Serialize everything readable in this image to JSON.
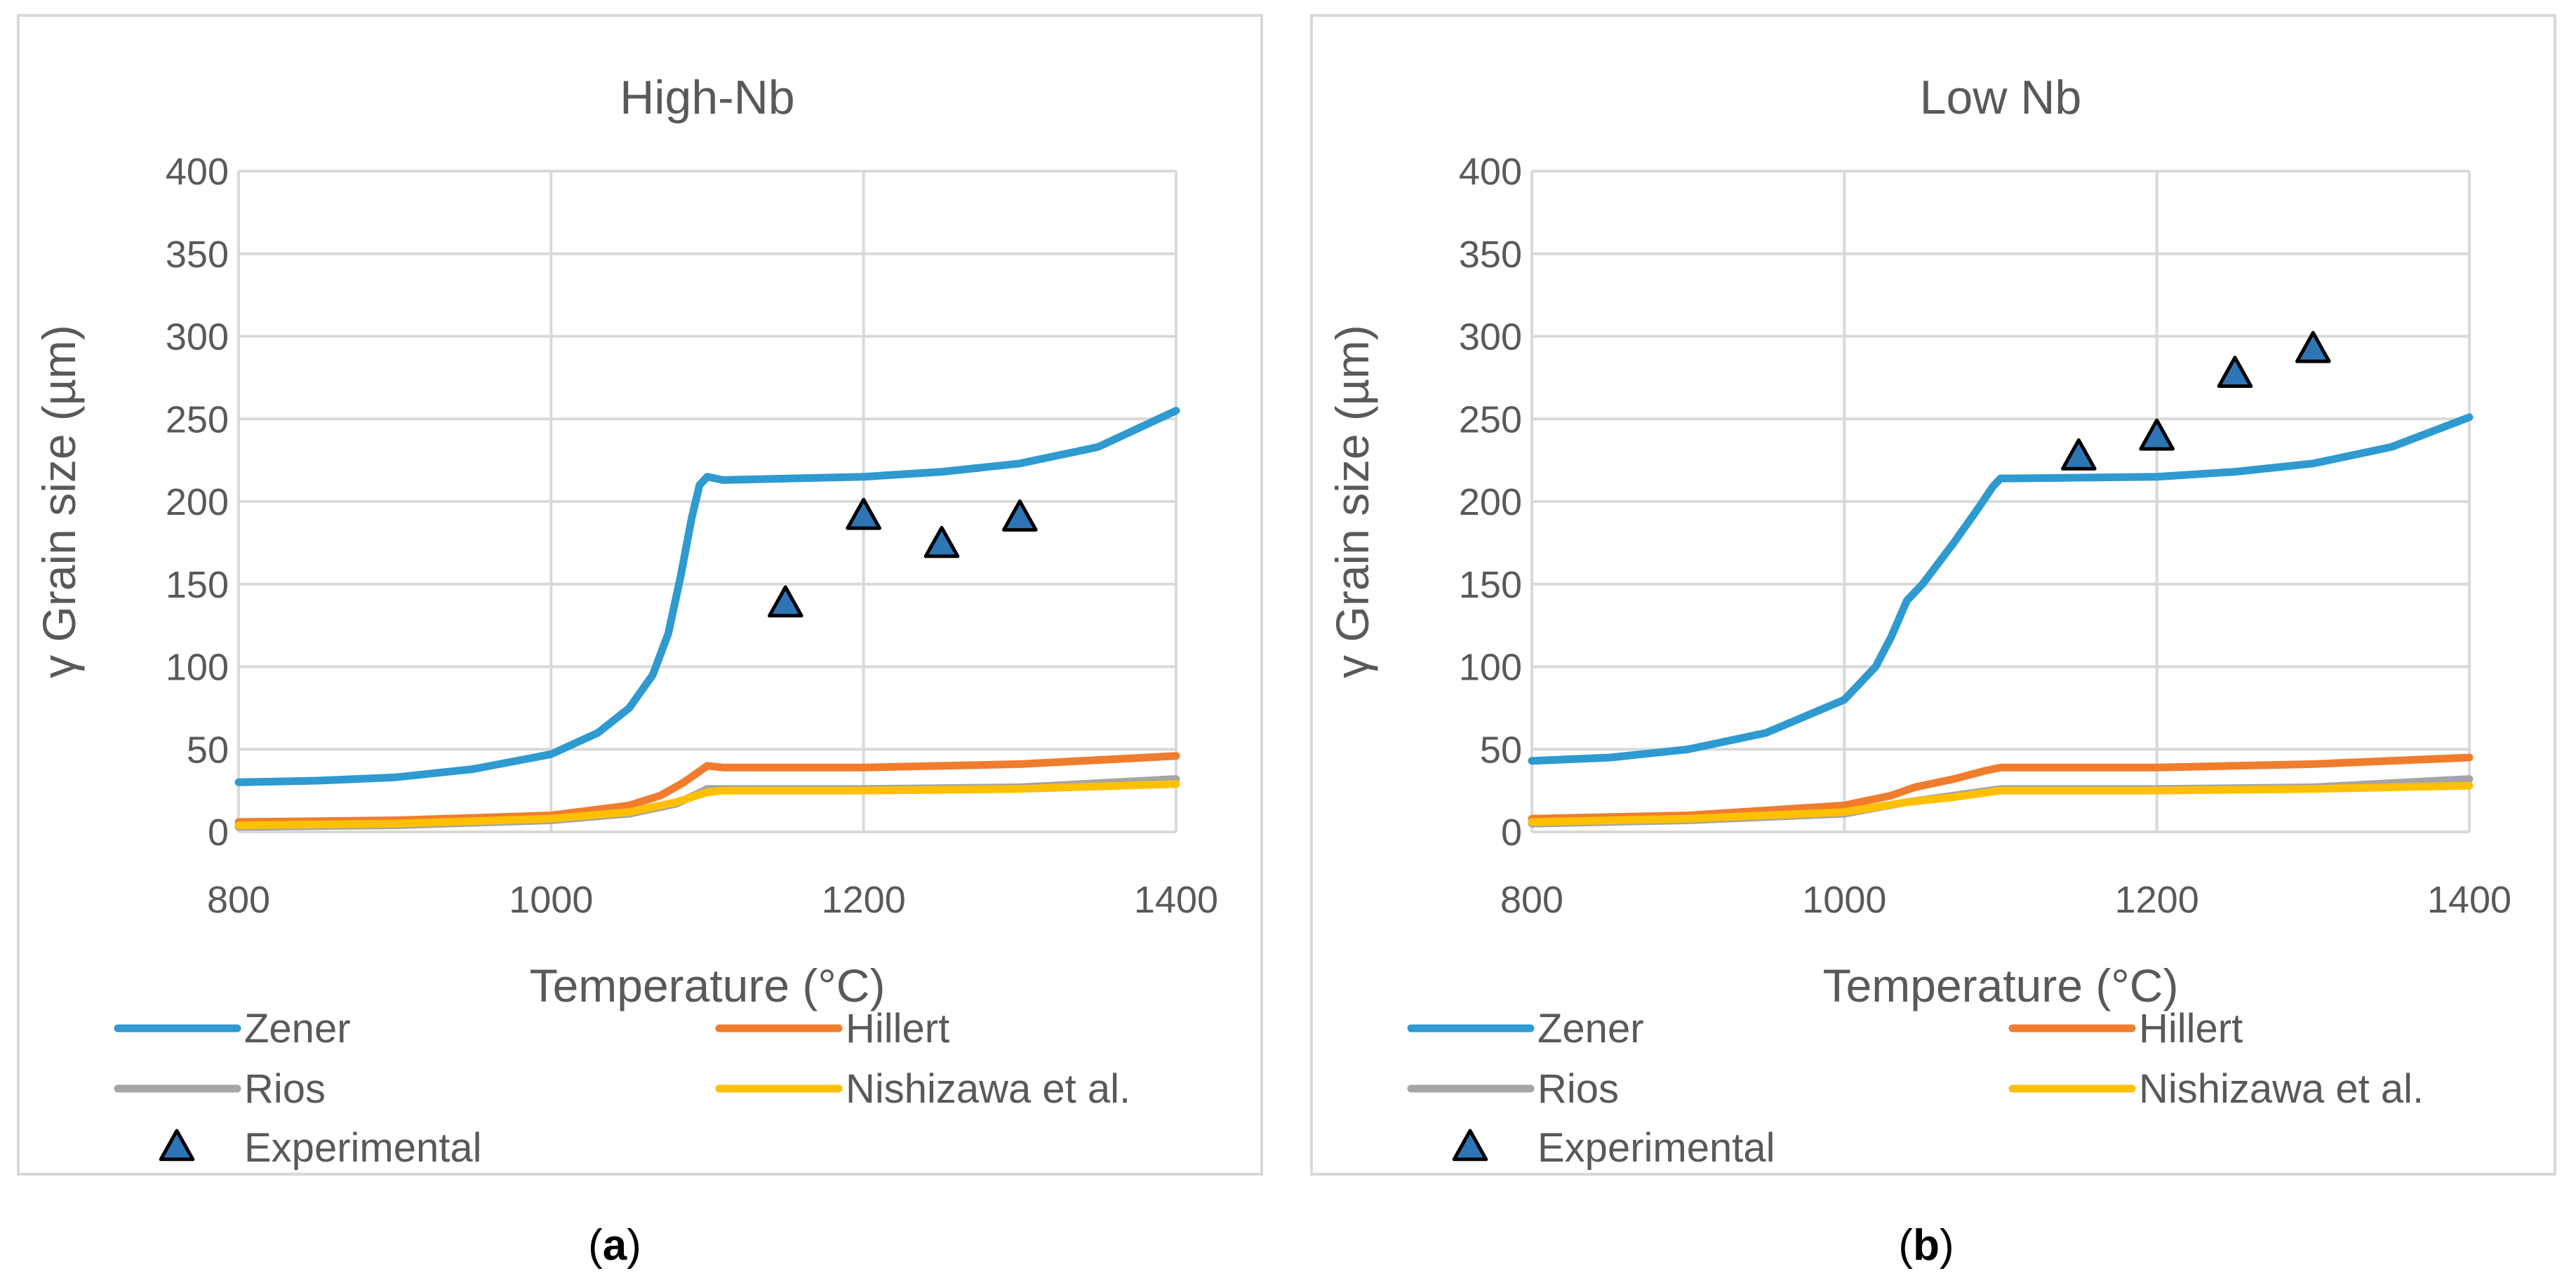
{
  "chart_data": [
    {
      "type": "line",
      "panel": "a",
      "title": "High-Nb",
      "xlabel": "Temperature (°C)",
      "ylabel": "γ Grain size (µm)",
      "xlim": [
        800,
        1400
      ],
      "ylim": [
        0,
        400
      ],
      "xticks": [
        800,
        1000,
        1200,
        1400
      ],
      "yticks": [
        0,
        50,
        100,
        150,
        200,
        250,
        300,
        350,
        400
      ],
      "grid": true,
      "legend_position": "bottom",
      "series": [
        {
          "name": "Zener",
          "color": "#2E9AD0",
          "x": [
            800,
            850,
            900,
            950,
            1000,
            1030,
            1050,
            1065,
            1075,
            1083,
            1090,
            1095,
            1100,
            1105,
            1110,
            1200,
            1250,
            1300,
            1350,
            1400
          ],
          "y": [
            30,
            31,
            33,
            38,
            47,
            60,
            75,
            95,
            120,
            155,
            190,
            210,
            215,
            214,
            213,
            215,
            218,
            223,
            233,
            255
          ]
        },
        {
          "name": "Hillert",
          "color": "#F07D2D",
          "x": [
            800,
            900,
            1000,
            1050,
            1070,
            1085,
            1100,
            1110,
            1200,
            1300,
            1400
          ],
          "y": [
            6,
            7,
            10,
            16,
            22,
            30,
            40,
            39,
            39,
            41,
            46
          ]
        },
        {
          "name": "Rios",
          "color": "#A5A5A5",
          "x": [
            800,
            900,
            1000,
            1050,
            1080,
            1100,
            1110,
            1200,
            1300,
            1400
          ],
          "y": [
            3,
            4,
            7,
            11,
            17,
            26,
            26,
            26,
            27,
            32
          ]
        },
        {
          "name": "Nishizawa et al.",
          "color": "#FFC000",
          "x": [
            800,
            900,
            1000,
            1050,
            1080,
            1100,
            1110,
            1200,
            1300,
            1400
          ],
          "y": [
            4,
            5,
            8,
            12,
            18,
            24,
            25,
            25,
            26,
            29
          ]
        }
      ],
      "experimental": {
        "name": "Experimental",
        "color": "#2E75B6",
        "x": [
          1150,
          1200,
          1250,
          1300
        ],
        "y": [
          138,
          191,
          174,
          190
        ]
      }
    },
    {
      "type": "line",
      "panel": "b",
      "title": "Low Nb",
      "xlabel": "Temperature (°C)",
      "ylabel": "γ Grain size (µm)",
      "xlim": [
        800,
        1400
      ],
      "ylim": [
        0,
        400
      ],
      "xticks": [
        800,
        1000,
        1200,
        1400
      ],
      "yticks": [
        0,
        50,
        100,
        150,
        200,
        250,
        300,
        350,
        400
      ],
      "grid": true,
      "legend_position": "bottom",
      "series": [
        {
          "name": "Zener",
          "color": "#2E9AD0",
          "x": [
            800,
            850,
            900,
            950,
            1000,
            1020,
            1030,
            1040,
            1050,
            1070,
            1085,
            1095,
            1100,
            1110,
            1200,
            1250,
            1300,
            1350,
            1400
          ],
          "y": [
            43,
            45,
            50,
            60,
            80,
            100,
            118,
            140,
            150,
            175,
            195,
            209,
            214,
            214,
            215,
            218,
            223,
            233,
            251
          ]
        },
        {
          "name": "Hillert",
          "color": "#F07D2D",
          "x": [
            800,
            900,
            1000,
            1030,
            1045,
            1070,
            1090,
            1100,
            1110,
            1200,
            1300,
            1400
          ],
          "y": [
            8,
            10,
            16,
            22,
            27,
            32,
            37,
            39,
            39,
            39,
            41,
            45
          ]
        },
        {
          "name": "Rios",
          "color": "#A5A5A5",
          "x": [
            800,
            900,
            1000,
            1040,
            1070,
            1100,
            1110,
            1200,
            1300,
            1400
          ],
          "y": [
            5,
            7,
            11,
            18,
            22,
            26,
            26,
            26,
            27,
            32
          ]
        },
        {
          "name": "Nishizawa et al.",
          "color": "#FFC000",
          "x": [
            800,
            900,
            1000,
            1040,
            1070,
            1100,
            1110,
            1200,
            1300,
            1400
          ],
          "y": [
            6,
            8,
            12,
            18,
            21,
            25,
            25,
            25,
            26,
            28
          ]
        }
      ],
      "experimental": {
        "name": "Experimental",
        "color": "#2E75B6",
        "x": [
          1150,
          1200,
          1250,
          1300
        ],
        "y": [
          227,
          239,
          277,
          292
        ]
      }
    }
  ],
  "captions": [
    "a",
    "b"
  ]
}
